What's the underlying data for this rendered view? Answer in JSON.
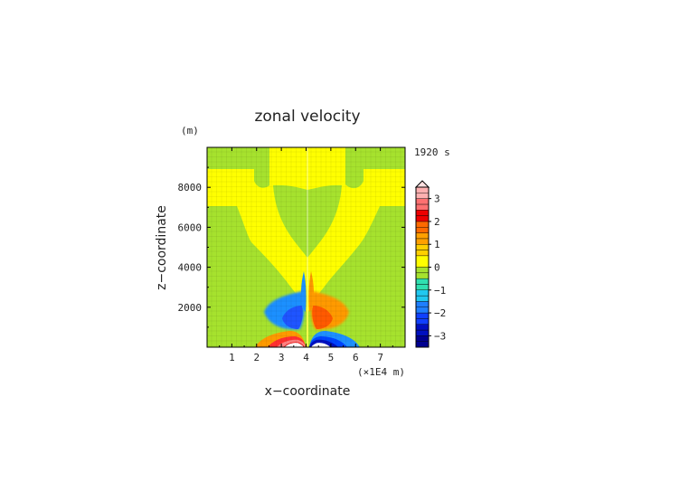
{
  "chart_data": {
    "type": "heatmap",
    "title": "zonal velocity",
    "xlabel": "x−coordinate",
    "ylabel": "z−coordinate",
    "x_unit": "(×1E4 m)",
    "y_unit": "(m)",
    "time_label": "1920 s",
    "xlim": [
      0,
      8
    ],
    "ylim": [
      0,
      10000
    ],
    "x_ticks": [
      1,
      2,
      3,
      4,
      5,
      6,
      7
    ],
    "y_ticks": [
      2000,
      4000,
      6000,
      8000
    ],
    "x_tick_labels": [
      "1",
      "2",
      "3",
      "4",
      "5",
      "6",
      "7"
    ],
    "y_tick_labels": [
      "2000",
      "4000",
      "6000",
      "8000"
    ],
    "colorbar": {
      "levels": [
        -3.5,
        -3.25,
        -3,
        -2.75,
        -2.5,
        -2.25,
        -2,
        -1.75,
        -1.5,
        -1.25,
        -1,
        -0.75,
        -0.5,
        -0.25,
        0,
        0.5,
        0.75,
        1,
        1.25,
        1.5,
        1.75,
        2,
        2.25,
        2.5,
        2.75,
        3,
        3.25,
        3.5
      ],
      "tick_values": [
        3,
        2,
        1,
        0,
        -1,
        -2,
        -3
      ],
      "tick_labels": [
        "3",
        "2",
        "1",
        "0",
        "−1",
        "−2",
        "−3"
      ],
      "extend": "max"
    },
    "colors": {
      "background_positive": "#ffff00",
      "background_near_zero": "#a6e22e",
      "positive": "#ff9a00",
      "negative": "#1e90ff",
      "strong_negative": "#0010c0",
      "strong_positive": "#e00000",
      "peak_positive": "#ffffff"
    }
  }
}
